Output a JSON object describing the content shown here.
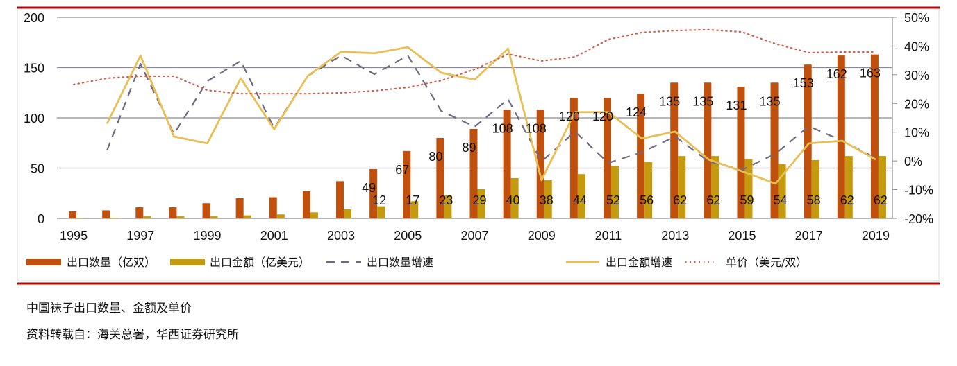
{
  "chart_data": {
    "type": "bar",
    "categories": [
      "1995",
      "1996",
      "1997",
      "1998",
      "1999",
      "2000",
      "2001",
      "2002",
      "2003",
      "2004",
      "2005",
      "2006",
      "2007",
      "2008",
      "2009",
      "2010",
      "2011",
      "2012",
      "2013",
      "2014",
      "2015",
      "2016",
      "2017",
      "2018",
      "2019"
    ],
    "x_tick_labels": [
      "1995",
      "1997",
      "1999",
      "2001",
      "2003",
      "2005",
      "2007",
      "2009",
      "2011",
      "2013",
      "2015",
      "2017",
      "2019"
    ],
    "y_left": {
      "ylim": [
        0,
        200
      ],
      "ticks": [
        "0",
        "50",
        "100",
        "150",
        "200"
      ]
    },
    "y_right": {
      "ylim": [
        -20,
        50
      ],
      "ticks": [
        "-20%",
        "-10%",
        "0%",
        "10%",
        "20%",
        "30%",
        "40%",
        "50%"
      ]
    },
    "grid": true,
    "legend_position": "bottom",
    "series": [
      {
        "name": "出口数量（亿双）",
        "type": "bar",
        "axis": "left",
        "color": "#c0500c",
        "values": [
          7,
          8,
          11,
          11,
          15,
          20,
          21,
          27,
          37,
          49,
          67,
          80,
          89,
          108,
          108,
          120,
          120,
          124,
          135,
          135,
          131,
          135,
          153,
          162,
          163
        ],
        "labels": [
          null,
          null,
          null,
          null,
          null,
          null,
          null,
          null,
          null,
          "49",
          "67",
          "80",
          "89",
          "108",
          "108",
          "120",
          "120",
          "124",
          "135",
          "135",
          "131",
          "135",
          "153",
          "162",
          "163"
        ]
      },
      {
        "name": "出口金额（亿美元）",
        "type": "bar",
        "axis": "left",
        "color": "#c49a0e",
        "values": [
          0.5,
          0.7,
          2,
          2,
          2,
          3,
          4,
          6,
          9,
          12,
          17,
          23,
          29,
          40,
          38,
          44,
          52,
          56,
          62,
          62,
          59,
          54,
          58,
          62,
          62
        ],
        "labels": [
          null,
          null,
          null,
          null,
          null,
          null,
          null,
          null,
          null,
          "12",
          "17",
          "23",
          "29",
          "40",
          "38",
          "44",
          "52",
          "56",
          "62",
          "62",
          "59",
          "54",
          "58",
          "62",
          "62"
        ]
      },
      {
        "name": "出口数量增速",
        "type": "line",
        "style": "dashed",
        "axis": "right",
        "color": "#6e6a80",
        "values": [
          null,
          3.7,
          33.8,
          9.4,
          27.8,
          34.8,
          11.4,
          29.5,
          36.7,
          30.2,
          36.7,
          17.4,
          11.9,
          21.5,
          -0.2,
          10.2,
          -0.7,
          3,
          8.5,
          -0.2,
          -3.1,
          2.5,
          12.1,
          7,
          1
        ]
      },
      {
        "name": "出口金额增速",
        "type": "line",
        "style": "solid",
        "axis": "right",
        "color": "#e8be55",
        "values": [
          null,
          13,
          36.7,
          8.5,
          6.1,
          28.8,
          11,
          29.5,
          38,
          37.5,
          39.6,
          30.7,
          28.3,
          39.1,
          -6.7,
          17,
          17,
          7.8,
          10.2,
          0.5,
          -3.6,
          -7.9,
          6.1,
          7,
          0.5
        ]
      },
      {
        "name": "单价（美元/双）",
        "type": "line",
        "style": "dotted",
        "axis": "right",
        "color": "#d0604a",
        "values": [
          26.6,
          28.8,
          29.5,
          29.5,
          24.6,
          23.4,
          23.4,
          23.4,
          23.7,
          24.4,
          25.6,
          28,
          31.9,
          37.2,
          34.8,
          36.2,
          42.3,
          44.7,
          45.4,
          45.7,
          44.9,
          40.8,
          37.7,
          37.9,
          37.9
        ]
      }
    ]
  },
  "caption": {
    "title": "中国袜子出口数量、金额及单价",
    "source": "资料转载自：海关总署，华西证券研究所"
  },
  "colors": {
    "frame_red": "#c00000",
    "grid": "#8a8a9a"
  }
}
